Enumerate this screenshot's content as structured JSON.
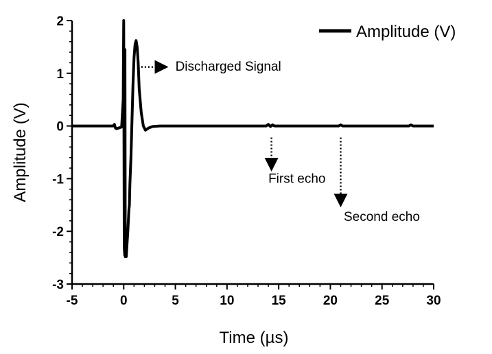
{
  "chart_data": {
    "type": "line",
    "xlabel": "Time (µs)",
    "ylabel": "Amplitude (V)",
    "xlim": [
      -5,
      30
    ],
    "ylim": [
      -3,
      2
    ],
    "x_ticks": [
      -5,
      0,
      5,
      10,
      15,
      20,
      25,
      30
    ],
    "y_ticks": [
      -3,
      -2,
      -1,
      0,
      1,
      2
    ],
    "grid": false,
    "legend_position": "top-right",
    "series": [
      {
        "name": "Amplitude (V)",
        "color": "#000000",
        "x": [
          -5,
          -1.0,
          -0.9,
          -0.8,
          -0.7,
          -0.5,
          -0.2,
          -0.05,
          0.0,
          0.05,
          0.1,
          0.12,
          0.15,
          0.2,
          0.25,
          0.3,
          0.4,
          0.5,
          0.55,
          0.6,
          0.7,
          0.8,
          0.9,
          1.0,
          1.1,
          1.2,
          1.3,
          1.4,
          1.5,
          1.7,
          1.9,
          2.1,
          2.4,
          2.8,
          3.5,
          5,
          8,
          12,
          13.8,
          14.0,
          14.2,
          14.4,
          14.6,
          16,
          20,
          20.8,
          21.0,
          21.2,
          24,
          27.6,
          27.8,
          28.0,
          30
        ],
        "y": [
          0.0,
          0.0,
          0.03,
          -0.04,
          -0.05,
          -0.04,
          -0.02,
          0.5,
          2.0,
          -2.3,
          -2.45,
          1.45,
          -2.48,
          -2.45,
          -2.48,
          -2.3,
          -2.0,
          -1.6,
          -1.5,
          -1.1,
          -0.6,
          0.1,
          0.8,
          1.3,
          1.55,
          1.62,
          1.5,
          1.2,
          0.7,
          0.25,
          0.0,
          -0.08,
          -0.04,
          -0.01,
          0.0,
          0.0,
          0.0,
          0.0,
          0.0,
          0.03,
          -0.01,
          0.02,
          0.0,
          0.0,
          0.0,
          0.0,
          0.02,
          0.0,
          0.0,
          0.0,
          0.02,
          0.0,
          0.0
        ]
      }
    ],
    "annotations": [
      {
        "text": "Discharged Signal",
        "arrow_from": [
          1.7,
          1.12
        ],
        "arrow_to": [
          4.0,
          1.12
        ],
        "text_at": [
          5.0,
          1.05
        ]
      },
      {
        "text": "First echo",
        "arrow_from": [
          14.3,
          -0.22
        ],
        "arrow_to": [
          14.3,
          -0.8
        ],
        "text_at": [
          14.0,
          -1.08
        ]
      },
      {
        "text": "Second echo",
        "arrow_from": [
          21.0,
          -0.22
        ],
        "arrow_to": [
          21.0,
          -1.48
        ],
        "text_at": [
          21.3,
          -1.8
        ]
      }
    ]
  }
}
